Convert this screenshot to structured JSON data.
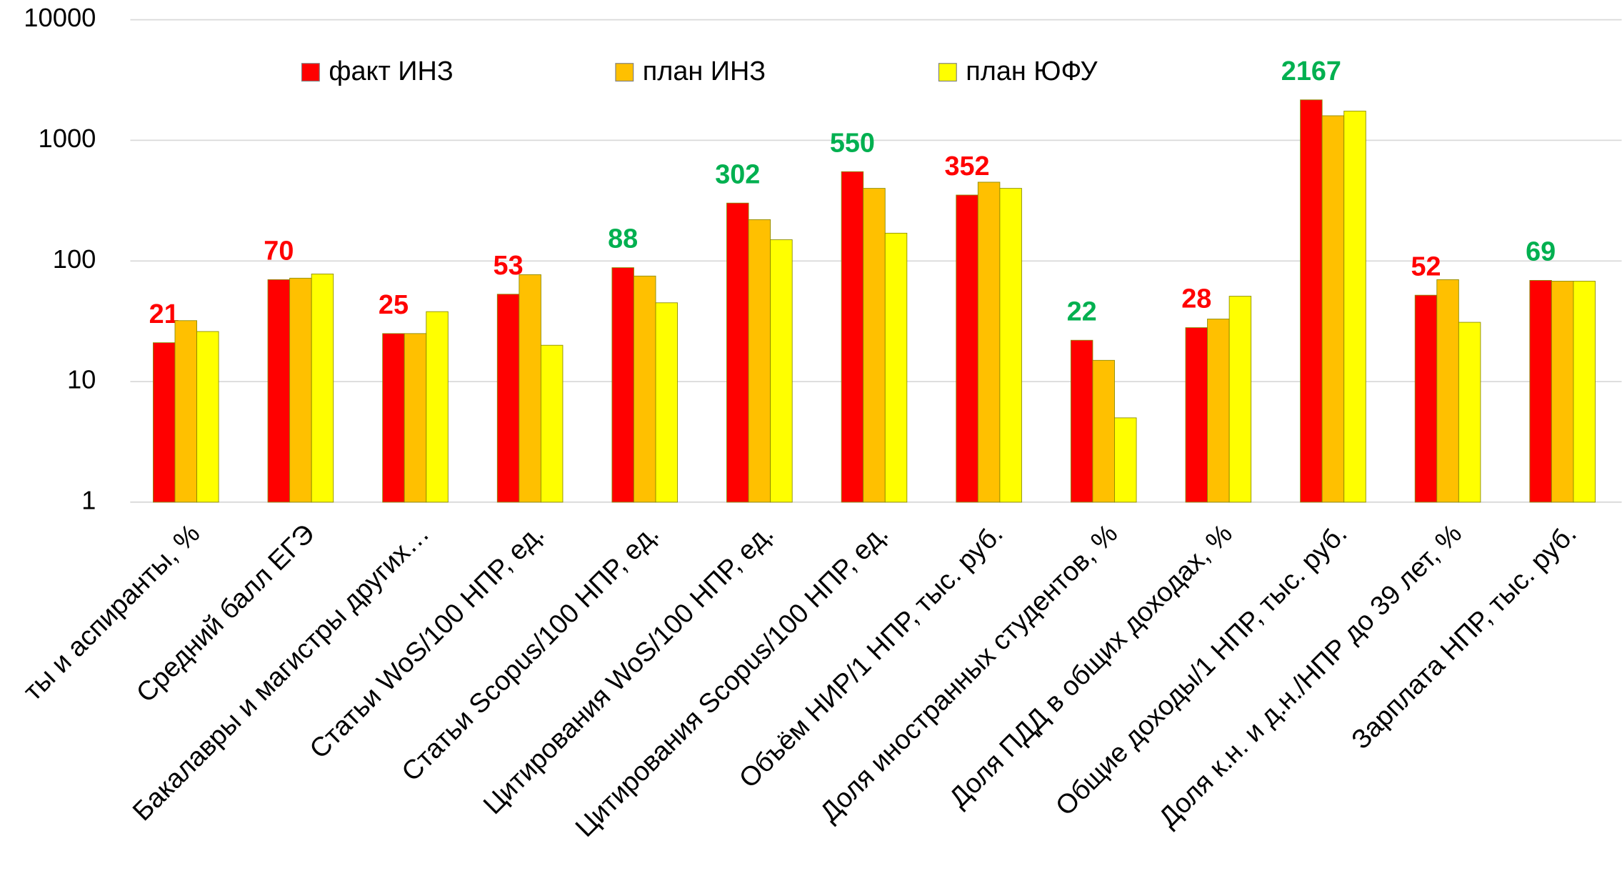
{
  "chart_data": {
    "type": "bar",
    "log_scale": true,
    "grid": true,
    "categories": [
      "ты и аспиранты, %",
      "Средний балл ЕГЭ",
      "Бакалавры и магистры других…",
      "Статьи WoS/100 НПР, ед.",
      "Статьи Scopus/100 НПР, ед.",
      "Цитирования WoS/100 НПР, ед.",
      "Цитирования Scopus/100 НПР, ед.",
      "Объём НИР/1 НПР, тыс. руб.",
      "Доля иностранных студентов, %",
      "Доля ПДД в общих доходах, %",
      "Общие доходы/1 НПР, тыс. руб.",
      "Доля к.н. и д.н./НПР до 39 лет, %",
      "Зарплата НПР, тыс. руб."
    ],
    "series": [
      {
        "name": "факт ИНЗ",
        "color": "#ff0000",
        "values": [
          21,
          70,
          25,
          53,
          88,
          302,
          550,
          352,
          22,
          28,
          2167,
          52,
          69
        ],
        "value_label_colors": [
          "#ff0000",
          "#ff0000",
          "#ff0000",
          "#ff0000",
          "#00b050",
          "#00b050",
          "#00b050",
          "#ff0000",
          "#00b050",
          "#ff0000",
          "#00b050",
          "#ff0000",
          "#00b050"
        ]
      },
      {
        "name": "план ИНЗ",
        "color": "#ffc000",
        "values": [
          32,
          72,
          25,
          77,
          75,
          220,
          400,
          450,
          15,
          33,
          1600,
          70,
          68
        ]
      },
      {
        "name": "план ЮФУ",
        "color": "#ffff00",
        "values": [
          26,
          78,
          38,
          20,
          45,
          150,
          170,
          400,
          5,
          51,
          1750,
          31,
          68
        ]
      }
    ],
    "ylim": [
      1,
      10000
    ],
    "yticks": [
      1,
      10,
      100,
      1000,
      10000
    ],
    "legend": "top"
  }
}
